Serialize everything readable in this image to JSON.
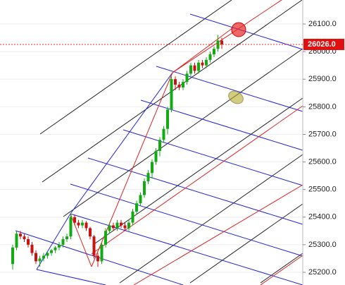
{
  "chart_data": {
    "type": "candlestick",
    "open": [
      25230,
      25290,
      25340,
      25330,
      25320,
      25300,
      25270,
      25240,
      25250,
      25260,
      25270,
      25280,
      25290,
      25300,
      25320,
      25330,
      25400,
      25380,
      25370,
      25380,
      25360,
      25330,
      25260,
      25240,
      25300,
      25350,
      25370,
      25360,
      25380,
      25370,
      25360,
      25380,
      25420,
      25450,
      25480,
      25530,
      25560,
      25600,
      25640,
      25680,
      25720,
      25790,
      25900,
      25880,
      25870,
      25890,
      25920,
      25950,
      25930,
      25960,
      25950,
      25970,
      25990,
      26010,
      26040
    ],
    "high": [
      25300,
      25350,
      25350,
      25340,
      25330,
      25310,
      25280,
      25260,
      25270,
      25275,
      25285,
      25295,
      25310,
      25330,
      25340,
      25415,
      25410,
      25390,
      25390,
      25385,
      25365,
      25335,
      25270,
      25310,
      25360,
      25380,
      25380,
      25390,
      25390,
      25380,
      25390,
      25430,
      25460,
      25490,
      25540,
      25570,
      25610,
      25650,
      25690,
      25730,
      25800,
      25910,
      25910,
      25890,
      25900,
      25930,
      25960,
      25960,
      25970,
      25970,
      25980,
      26000,
      26020,
      26060,
      26050
    ],
    "low": [
      25210,
      25280,
      25320,
      25310,
      25290,
      25260,
      25230,
      25220,
      25240,
      25250,
      25260,
      25270,
      25280,
      25290,
      25310,
      25320,
      25370,
      25360,
      25360,
      25350,
      25320,
      25250,
      25220,
      25230,
      25290,
      25340,
      25350,
      25350,
      25360,
      25350,
      25350,
      25370,
      25410,
      25440,
      25470,
      25520,
      25540,
      25590,
      25620,
      25670,
      25700,
      25780,
      25860,
      25860,
      25860,
      25880,
      25910,
      25920,
      25920,
      25940,
      25940,
      25960,
      25980,
      26000,
      26010
    ],
    "close": [
      25290,
      25340,
      25330,
      25320,
      25300,
      25270,
      25240,
      25250,
      25260,
      25270,
      25280,
      25290,
      25300,
      25320,
      25330,
      25400,
      25380,
      25370,
      25380,
      25360,
      25330,
      25260,
      25240,
      25300,
      25350,
      25370,
      25360,
      25380,
      25370,
      25360,
      25380,
      25420,
      25450,
      25480,
      25530,
      25560,
      25600,
      25640,
      25680,
      25720,
      25790,
      25900,
      25880,
      25870,
      25890,
      25920,
      25950,
      25930,
      25960,
      25950,
      25970,
      25990,
      26010,
      26040,
      26026
    ],
    "up_color": "#11aa11",
    "down_color": "#cc1111",
    "last_price_label": "26026.0",
    "ylim": [
      25154,
      26187
    ],
    "yticks": [
      {
        "value": 25200,
        "label": "25200.0"
      },
      {
        "value": 25300,
        "label": "25300.0"
      },
      {
        "value": 25400,
        "label": "25400.0"
      },
      {
        "value": 25500,
        "label": "25500.0"
      },
      {
        "value": 25600,
        "label": "25600.0"
      },
      {
        "value": 25700,
        "label": "25700.0"
      },
      {
        "value": 25800,
        "label": "25800.0"
      },
      {
        "value": 25900,
        "label": "25900.0"
      },
      {
        "value": 26000,
        "label": "26000.0"
      },
      {
        "value": 26100,
        "label": "26100.0"
      }
    ],
    "grid": true
  }
}
